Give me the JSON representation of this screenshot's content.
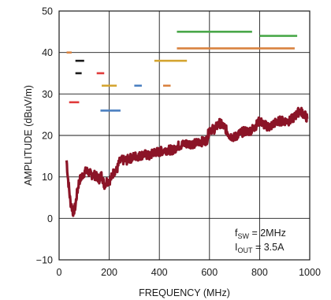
{
  "chart_data": {
    "type": "line",
    "title": "",
    "xlabel": "FREQUENCY (MHz)",
    "ylabel": "AMPLITUDE (dBuV/m)",
    "xlim": [
      0,
      1000
    ],
    "ylim": [
      -10,
      50
    ],
    "xticks": [
      0,
      200,
      400,
      600,
      800,
      1000
    ],
    "yticks": [
      -10,
      0,
      10,
      20,
      30,
      40,
      50
    ],
    "xtick_labels": [
      "0",
      "200",
      "400",
      "600",
      "800",
      "1000"
    ],
    "ytick_labels": [
      "−10",
      "0",
      "10",
      "20",
      "30",
      "40",
      "50"
    ],
    "grid": true,
    "annotation": {
      "line1_main": "f",
      "line1_sub": "SW",
      "line1_rest": " = 2MHz",
      "line2_main": "I",
      "line2_sub": "OUT",
      "line2_rest": " = 3.5A"
    },
    "series": [
      {
        "color": "#8b1427",
        "band_width": 2.2,
        "x": [
          30,
          35,
          40,
          45,
          50,
          55,
          60,
          65,
          70,
          80,
          90,
          100,
          110,
          120,
          130,
          140,
          150,
          160,
          170,
          180,
          190,
          200,
          210,
          220,
          230,
          240,
          250,
          260,
          270,
          280,
          290,
          300,
          320,
          340,
          360,
          380,
          400,
          420,
          440,
          460,
          470,
          480,
          500,
          520,
          540,
          560,
          580,
          590,
          600,
          620,
          640,
          660,
          680,
          700,
          720,
          740,
          760,
          780,
          800,
          820,
          840,
          860,
          880,
          900,
          920,
          940,
          960,
          980,
          990
        ],
        "y": [
          14,
          10,
          7,
          4,
          3,
          1.5,
          2,
          3,
          5.5,
          9,
          10,
          11,
          11.5,
          11,
          10.5,
          10.5,
          10,
          9.5,
          10.5,
          8,
          9,
          9,
          10,
          11.5,
          11.5,
          13.5,
          14,
          14,
          14,
          14.5,
          14.5,
          15,
          15,
          15.5,
          15,
          16,
          16,
          16.5,
          16.5,
          16.5,
          17.5,
          17.5,
          18,
          18,
          18,
          18.5,
          18.5,
          19,
          21.5,
          21.5,
          23,
          22,
          20,
          19.5,
          20.5,
          21,
          21,
          22,
          23.5,
          22.5,
          22,
          23,
          23.5,
          23.5,
          23.5,
          24.5,
          26,
          25,
          24
        ]
      }
    ],
    "limit_segments": [
      {
        "color": "#d9823f",
        "x": [
          30,
          50
        ],
        "y": 40
      },
      {
        "color": "#e03a3a",
        "x": [
          40,
          80
        ],
        "y": 28
      },
      {
        "color": "#1a1a1a",
        "x": [
          65,
          100
        ],
        "y": 38
      },
      {
        "color": "#1a1a1a",
        "x": [
          65,
          90
        ],
        "y": 35
      },
      {
        "color": "#e03a3a",
        "x": [
          150,
          180
        ],
        "y": 35
      },
      {
        "color": "#d4a531",
        "x": [
          170,
          230
        ],
        "y": 32
      },
      {
        "color": "#4a7fc0",
        "x": [
          165,
          245
        ],
        "y": 26
      },
      {
        "color": "#4a7fc0",
        "x": [
          300,
          330
        ],
        "y": 32
      },
      {
        "color": "#d4a531",
        "x": [
          380,
          510
        ],
        "y": 38
      },
      {
        "color": "#d9823f",
        "x": [
          415,
          445
        ],
        "y": 32
      },
      {
        "color": "#4aa84a",
        "x": [
          470,
          770
        ],
        "y": 45
      },
      {
        "color": "#d9823f",
        "x": [
          470,
          940
        ],
        "y": 41
      },
      {
        "color": "#4aa84a",
        "x": [
          800,
          950
        ],
        "y": 44
      }
    ],
    "axes_color": "#1a1a1a",
    "grid_color": "#1a1a1a"
  }
}
